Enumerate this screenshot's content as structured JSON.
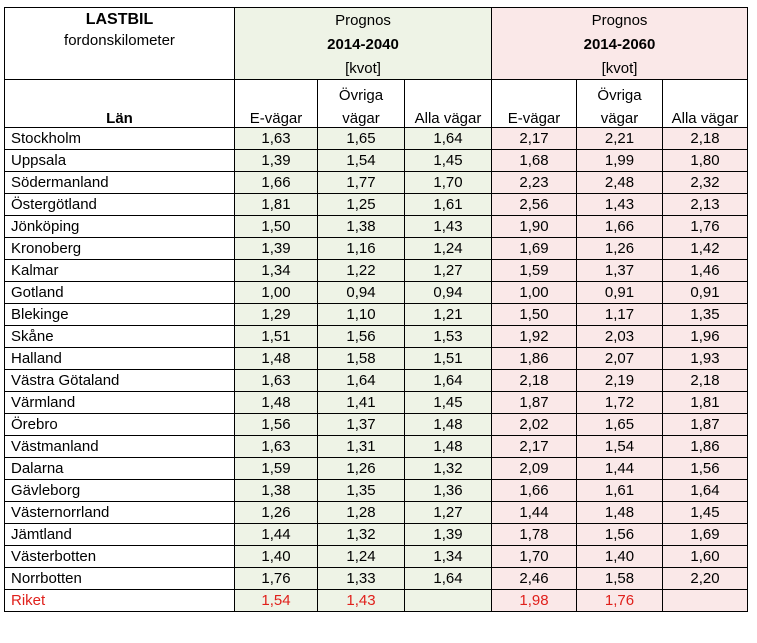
{
  "header": {
    "title": "LASTBIL",
    "subtitle": "fordonskilometer",
    "lan_label": "Län",
    "group1": {
      "label": "Prognos",
      "period": "2014-2040",
      "unit": "[kvot]"
    },
    "group2": {
      "label": "Prognos",
      "period": "2014-2060",
      "unit": "[kvot]"
    },
    "col_e_vagar": "E-vägar",
    "col_ovriga_top": "Övriga",
    "col_ovriga_bottom": "vägar",
    "col_alla_vagar": "Alla vägar"
  },
  "rows": [
    {
      "name": "Stockholm",
      "v": [
        "1,63",
        "1,65",
        "1,64",
        "2,17",
        "2,21",
        "2,18"
      ]
    },
    {
      "name": "Uppsala",
      "v": [
        "1,39",
        "1,54",
        "1,45",
        "1,68",
        "1,99",
        "1,80"
      ]
    },
    {
      "name": "Södermanland",
      "v": [
        "1,66",
        "1,77",
        "1,70",
        "2,23",
        "2,48",
        "2,32"
      ]
    },
    {
      "name": "Östergötland",
      "v": [
        "1,81",
        "1,25",
        "1,61",
        "2,56",
        "1,43",
        "2,13"
      ]
    },
    {
      "name": "Jönköping",
      "v": [
        "1,50",
        "1,38",
        "1,43",
        "1,90",
        "1,66",
        "1,76"
      ]
    },
    {
      "name": "Kronoberg",
      "v": [
        "1,39",
        "1,16",
        "1,24",
        "1,69",
        "1,26",
        "1,42"
      ]
    },
    {
      "name": "Kalmar",
      "v": [
        "1,34",
        "1,22",
        "1,27",
        "1,59",
        "1,37",
        "1,46"
      ]
    },
    {
      "name": "Gotland",
      "v": [
        "1,00",
        "0,94",
        "0,94",
        "1,00",
        "0,91",
        "0,91"
      ]
    },
    {
      "name": "Blekinge",
      "v": [
        "1,29",
        "1,10",
        "1,21",
        "1,50",
        "1,17",
        "1,35"
      ]
    },
    {
      "name": "Skåne",
      "v": [
        "1,51",
        "1,56",
        "1,53",
        "1,92",
        "2,03",
        "1,96"
      ]
    },
    {
      "name": "Halland",
      "v": [
        "1,48",
        "1,58",
        "1,51",
        "1,86",
        "2,07",
        "1,93"
      ]
    },
    {
      "name": "Västra Götaland",
      "v": [
        "1,63",
        "1,64",
        "1,64",
        "2,18",
        "2,19",
        "2,18"
      ]
    },
    {
      "name": "Värmland",
      "v": [
        "1,48",
        "1,41",
        "1,45",
        "1,87",
        "1,72",
        "1,81"
      ]
    },
    {
      "name": "Örebro",
      "v": [
        "1,56",
        "1,37",
        "1,48",
        "2,02",
        "1,65",
        "1,87"
      ]
    },
    {
      "name": "Västmanland",
      "v": [
        "1,63",
        "1,31",
        "1,48",
        "2,17",
        "1,54",
        "1,86"
      ]
    },
    {
      "name": "Dalarna",
      "v": [
        "1,59",
        "1,26",
        "1,32",
        "2,09",
        "1,44",
        "1,56"
      ]
    },
    {
      "name": "Gävleborg",
      "v": [
        "1,38",
        "1,35",
        "1,36",
        "1,66",
        "1,61",
        "1,64"
      ]
    },
    {
      "name": "Västernorrland",
      "v": [
        "1,26",
        "1,28",
        "1,27",
        "1,44",
        "1,48",
        "1,45"
      ]
    },
    {
      "name": "Jämtland",
      "v": [
        "1,44",
        "1,32",
        "1,39",
        "1,78",
        "1,56",
        "1,69"
      ]
    },
    {
      "name": "Västerbotten",
      "v": [
        "1,40",
        "1,24",
        "1,34",
        "1,70",
        "1,40",
        "1,60"
      ]
    },
    {
      "name": "Norrbotten",
      "v": [
        "1,76",
        "1,33",
        "1,64",
        "2,46",
        "1,58",
        "2,20"
      ]
    }
  ],
  "total": {
    "name": "Riket",
    "v": [
      "1,54",
      "1,43",
      "",
      "1,98",
      "1,76",
      ""
    ]
  },
  "colors": {
    "green_bg": "#eef3e6",
    "pink_bg": "#fae8e8",
    "total_text": "#e0201b"
  }
}
